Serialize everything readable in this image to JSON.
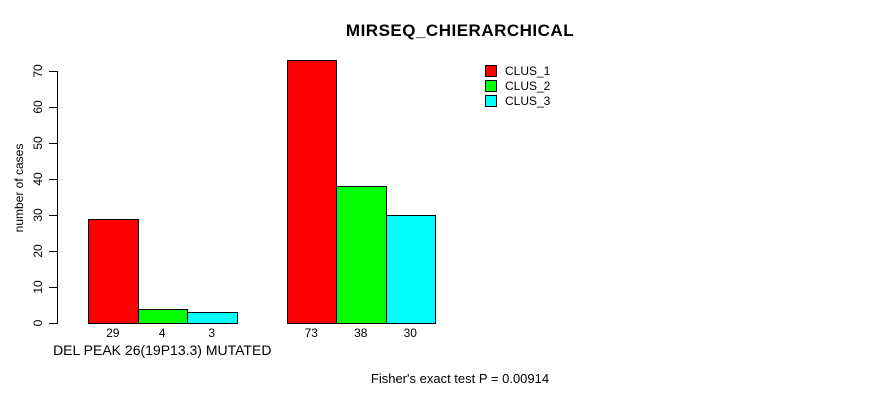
{
  "chart_data": {
    "type": "bar",
    "title": "MIRSEQ_CHIERARCHICAL",
    "ylabel": "number of cases",
    "xlabel": "",
    "categories": [
      "DEL PEAK 26(19P13.3) MUTATED",
      ""
    ],
    "series": [
      {
        "name": "CLUS_1",
        "color": "#ff0000",
        "values": [
          29,
          73
        ]
      },
      {
        "name": "CLUS_2",
        "color": "#00ff00",
        "values": [
          4,
          38
        ]
      },
      {
        "name": "CLUS_3",
        "color": "#00ffff",
        "values": [
          3,
          30
        ]
      }
    ],
    "bar_value_labels": [
      [
        29,
        4,
        3
      ],
      [
        73,
        38,
        30
      ]
    ],
    "yticks": [
      0,
      10,
      20,
      30,
      40,
      50,
      60,
      70
    ],
    "ylim": [
      0,
      73
    ],
    "grid": false,
    "legend_position": "top-right-inside",
    "annotation": "Fisher's exact test P = 0.00914",
    "colors": {
      "background": "#ffffff",
      "axis": "#000000",
      "text": "#000000"
    }
  }
}
